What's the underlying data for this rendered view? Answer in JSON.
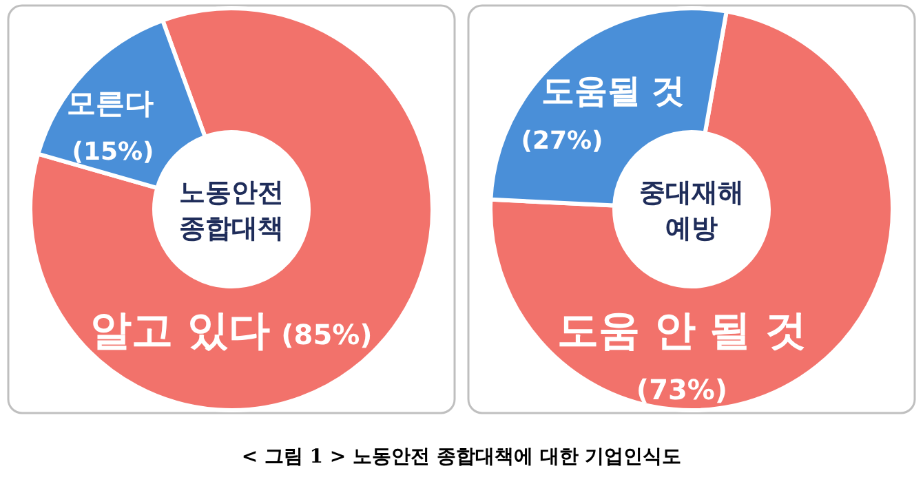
{
  "chart_data": [
    {
      "type": "donut",
      "title": "노동안전 종합대책",
      "categories": [
        "알고 있다",
        "모른다"
      ],
      "values": [
        85,
        15
      ],
      "colors": [
        "#f2726b",
        "#4a8fd8"
      ],
      "value_labels": [
        "(85%)",
        "(15%)"
      ],
      "annotations": [
        "< 그림 1 > 노동안전 종합대책에 대한 기업인식도"
      ]
    },
    {
      "type": "donut",
      "title": "중대재해 예방",
      "categories": [
        "도움 안 될 것",
        "도움될 것"
      ],
      "values": [
        73,
        27
      ],
      "colors": [
        "#f2726b",
        "#4a8fd8"
      ],
      "value_labels": [
        "(73%)",
        "(27%)"
      ]
    }
  ]
}
